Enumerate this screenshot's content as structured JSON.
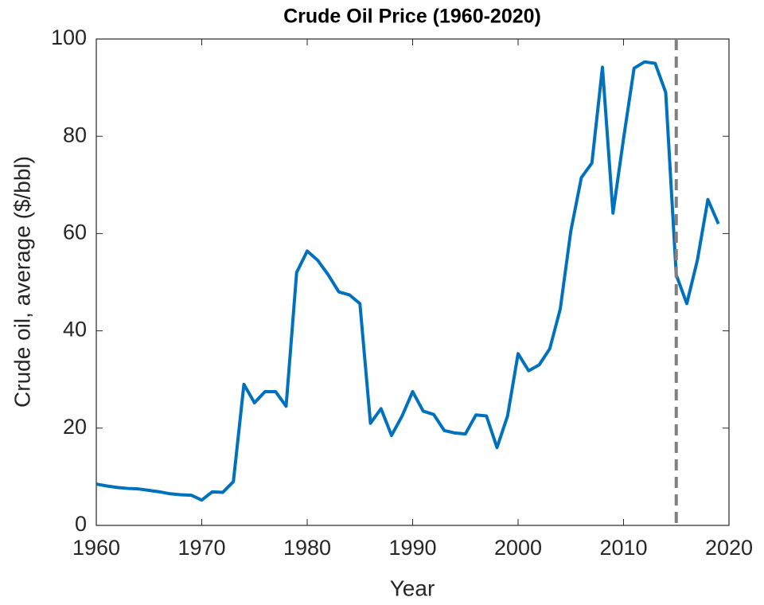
{
  "chart_data": {
    "type": "line",
    "title": "Crude Oil Price (1960-2020)",
    "xlabel": "Year",
    "ylabel": "Crude oil, average ($/bbl)",
    "x": [
      1960,
      1961,
      1962,
      1963,
      1964,
      1965,
      1966,
      1967,
      1968,
      1969,
      1970,
      1971,
      1972,
      1973,
      1974,
      1975,
      1976,
      1977,
      1978,
      1979,
      1980,
      1981,
      1982,
      1983,
      1984,
      1985,
      1986,
      1987,
      1988,
      1989,
      1990,
      1991,
      1992,
      1993,
      1994,
      1995,
      1996,
      1997,
      1998,
      1999,
      2000,
      2001,
      2002,
      2003,
      2004,
      2005,
      2006,
      2007,
      2008,
      2009,
      2010,
      2011,
      2012,
      2013,
      2014,
      2015,
      2016,
      2017,
      2018,
      2019
    ],
    "series": [
      {
        "name": "Crude oil",
        "color": "#0072BD",
        "values": [
          8.5,
          8.1,
          7.8,
          7.6,
          7.5,
          7.2,
          6.9,
          6.5,
          6.3,
          6.2,
          5.2,
          6.9,
          6.8,
          9.0,
          29.0,
          25.2,
          27.5,
          27.5,
          24.5,
          52.0,
          56.4,
          54.5,
          51.5,
          48.0,
          47.4,
          45.6,
          21.0,
          24.0,
          18.5,
          22.5,
          27.5,
          23.5,
          22.8,
          19.5,
          19.0,
          18.8,
          22.7,
          22.5,
          16.0,
          22.5,
          35.3,
          31.8,
          33.0,
          36.3,
          44.5,
          60.5,
          71.5,
          74.5,
          94.2,
          64.2,
          79.5,
          94.0,
          95.3,
          95.0,
          89.0,
          51.5,
          45.6,
          54.5,
          67.0,
          62.0
        ]
      }
    ],
    "xlim": [
      1960,
      2020
    ],
    "xticks": [
      1960,
      1970,
      1980,
      1990,
      2000,
      2010,
      2020
    ],
    "ylim": [
      0,
      100
    ],
    "yticks": [
      0,
      20,
      40,
      60,
      80,
      100
    ],
    "vline": 2015,
    "vline_color": "#808080"
  }
}
